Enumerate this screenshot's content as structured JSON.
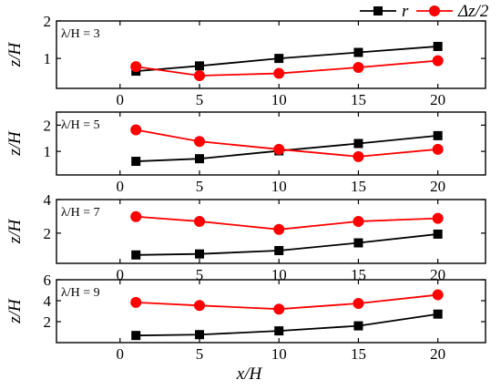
{
  "chart_data": [
    {
      "type": "line",
      "annotation": "λ/H = 3",
      "ylabel": "z/H",
      "xlim": [
        -4,
        23
      ],
      "ylim": [
        0.2,
        2.0
      ],
      "xticks": [
        0,
        5,
        10,
        15,
        20
      ],
      "yticks": [
        1,
        2
      ],
      "series": [
        {
          "name": "r",
          "color": "#000000",
          "marker": "square",
          "x": [
            1,
            5,
            10,
            15,
            20
          ],
          "y": [
            0.66,
            0.8,
            1.0,
            1.16,
            1.32
          ]
        },
        {
          "name": "Δz/2",
          "color": "#ff0000",
          "marker": "circle",
          "x": [
            1,
            5,
            10,
            15,
            20
          ],
          "y": [
            0.78,
            0.54,
            0.6,
            0.76,
            0.94
          ]
        }
      ]
    },
    {
      "type": "line",
      "annotation": "λ/H = 5",
      "ylabel": "z/H",
      "xlim": [
        -4,
        23
      ],
      "ylim": [
        0.1,
        2.5
      ],
      "xticks": [
        0,
        5,
        10,
        15,
        20
      ],
      "yticks": [
        1,
        2
      ],
      "series": [
        {
          "name": "r",
          "color": "#000000",
          "marker": "square",
          "x": [
            1,
            5,
            10,
            15,
            20
          ],
          "y": [
            0.62,
            0.72,
            1.02,
            1.3,
            1.6
          ]
        },
        {
          "name": "Δz/2",
          "color": "#ff0000",
          "marker": "circle",
          "x": [
            1,
            5,
            10,
            15,
            20
          ],
          "y": [
            1.82,
            1.38,
            1.08,
            0.8,
            1.08
          ]
        }
      ]
    },
    {
      "type": "line",
      "annotation": "λ/H = 7",
      "ylabel": "z/H",
      "xlim": [
        -4,
        23
      ],
      "ylim": [
        0.2,
        4.0
      ],
      "xticks": [
        0,
        5,
        10,
        15,
        20
      ],
      "yticks": [
        2,
        4
      ],
      "series": [
        {
          "name": "r",
          "color": "#000000",
          "marker": "square",
          "x": [
            1,
            5,
            10,
            15,
            20
          ],
          "y": [
            0.7,
            0.76,
            0.96,
            1.42,
            1.94
          ]
        },
        {
          "name": "Δz/2",
          "color": "#ff0000",
          "marker": "circle",
          "x": [
            1,
            5,
            10,
            15,
            20
          ],
          "y": [
            2.98,
            2.7,
            2.22,
            2.7,
            2.88
          ]
        }
      ]
    },
    {
      "type": "line",
      "annotation": "λ/H = 9",
      "ylabel": "z/H",
      "xlabel": "x/H",
      "xlim": [
        -4,
        23
      ],
      "ylim": [
        0.0,
        6.0
      ],
      "xticks": [
        0,
        5,
        10,
        15,
        20
      ],
      "yticks": [
        2,
        4,
        6
      ],
      "series": [
        {
          "name": "r",
          "color": "#000000",
          "marker": "square",
          "x": [
            1,
            5,
            10,
            15,
            20
          ],
          "y": [
            0.68,
            0.76,
            1.12,
            1.6,
            2.72
          ]
        },
        {
          "name": "Δz/2",
          "color": "#ff0000",
          "marker": "circle",
          "x": [
            1,
            5,
            10,
            15,
            20
          ],
          "y": [
            3.84,
            3.54,
            3.2,
            3.74,
            4.56
          ]
        }
      ]
    }
  ],
  "legend": [
    {
      "label": "r",
      "color": "#000000",
      "marker": "square"
    },
    {
      "label": "Δz/2",
      "color": "#ff0000",
      "marker": "circle"
    }
  ]
}
